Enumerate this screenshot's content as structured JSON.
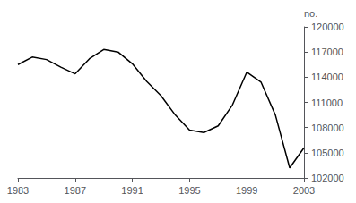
{
  "chart_data": {
    "type": "line",
    "x": [
      1983,
      1984,
      1985,
      1986,
      1987,
      1988,
      1989,
      1990,
      1991,
      1992,
      1993,
      1994,
      1995,
      1996,
      1997,
      1998,
      1999,
      2000,
      2001,
      2002,
      2003
    ],
    "values": [
      115500,
      116400,
      116100,
      115200,
      114400,
      116200,
      117300,
      117000,
      115600,
      113500,
      111800,
      109500,
      107700,
      107400,
      108200,
      110700,
      114600,
      113400,
      109500,
      103200,
      105600
    ],
    "color": "#000000",
    "ylabel": "no.",
    "xlim": [
      1983,
      2003
    ],
    "xticks": [
      1983,
      1987,
      1991,
      1995,
      1999,
      2003
    ],
    "ylim": [
      102000,
      120000
    ],
    "yticks": [
      102000,
      105000,
      108000,
      111000,
      114000,
      117000,
      120000
    ],
    "grid": false
  }
}
